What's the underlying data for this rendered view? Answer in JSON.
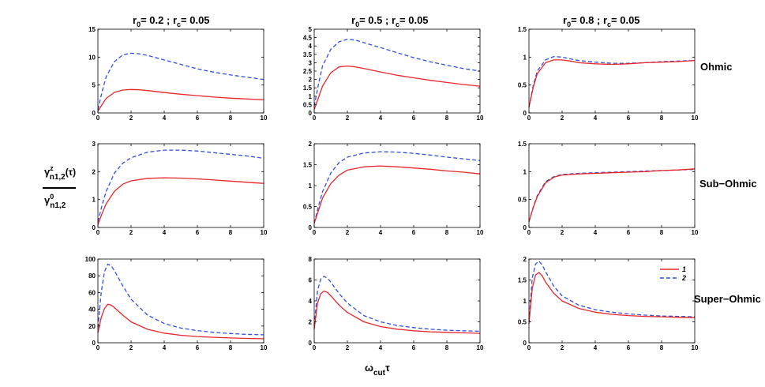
{
  "column_titles": [
    {
      "r0_sym": "r",
      "r0_sub": "0",
      "r0_val": "= 0.2",
      "sep": ";",
      "rc_sym": "r",
      "rc_sub": "c",
      "rc_val": "= 0.05"
    },
    {
      "r0_sym": "r",
      "r0_sub": "0",
      "r0_val": "= 0.5",
      "sep": ";",
      "rc_sym": "r",
      "rc_sub": "c",
      "rc_val": "= 0.05"
    },
    {
      "r0_sym": "r",
      "r0_sub": "0",
      "r0_val": "= 0.8",
      "sep": ";",
      "rc_sym": "r",
      "rc_sub": "c",
      "rc_val": "= 0.05"
    }
  ],
  "row_labels": [
    "Ohmic",
    "Sub−Ohmic",
    "Super−Ohmic"
  ],
  "xlabel": {
    "main": "ω",
    "sub": "cut",
    "tail": "τ"
  },
  "ylabel": {
    "num_main": "γ",
    "num_sup": "z",
    "num_sub": "n1,2",
    "num_tail": "(τ)",
    "den_main": "γ",
    "den_sup": "0",
    "den_sub": "n1,2"
  },
  "legend": {
    "entries": [
      {
        "label": "1",
        "color": "#e8262a",
        "dash": "solid"
      },
      {
        "label": "2",
        "color": "#2f4fe0",
        "dash": "dashed"
      }
    ]
  },
  "colors": {
    "series1": "#e8262a",
    "series2": "#2f4fe0"
  },
  "chart_data": [
    {
      "type": "line",
      "row": "Ohmic",
      "col": "r0=0.2",
      "xlim": [
        0,
        10
      ],
      "ylim": [
        0,
        15
      ],
      "xticks": [
        0,
        2,
        4,
        6,
        8,
        10
      ],
      "yticks": [
        0,
        5,
        10,
        15
      ],
      "x": [
        0,
        0.25,
        0.5,
        1,
        1.5,
        2,
        2.5,
        3,
        4,
        5,
        6,
        7,
        8,
        9,
        10
      ],
      "series": [
        {
          "name": "1",
          "values": [
            0.3,
            1.5,
            2.6,
            3.7,
            4.1,
            4.2,
            4.15,
            4.0,
            3.65,
            3.35,
            3.1,
            2.85,
            2.65,
            2.5,
            2.35
          ]
        },
        {
          "name": "2",
          "values": [
            0.6,
            3.8,
            6.5,
            9.2,
            10.4,
            10.7,
            10.6,
            10.3,
            9.5,
            8.7,
            7.9,
            7.3,
            6.8,
            6.4,
            6.0
          ]
        }
      ]
    },
    {
      "type": "line",
      "row": "Ohmic",
      "col": "r0=0.5",
      "xlim": [
        0,
        10
      ],
      "ylim": [
        0,
        5
      ],
      "xticks": [
        0,
        2,
        4,
        6,
        8,
        10
      ],
      "yticks": [
        0,
        0.5,
        1,
        1.5,
        2,
        2.5,
        3,
        3.5,
        4,
        4.5,
        5
      ],
      "x": [
        0,
        0.25,
        0.5,
        1,
        1.5,
        2,
        2.5,
        3,
        4,
        5,
        6,
        7,
        8,
        9,
        10
      ],
      "series": [
        {
          "name": "1",
          "values": [
            0.2,
            0.9,
            1.6,
            2.4,
            2.75,
            2.8,
            2.75,
            2.65,
            2.45,
            2.25,
            2.1,
            1.95,
            1.82,
            1.7,
            1.6
          ]
        },
        {
          "name": "2",
          "values": [
            0.4,
            1.7,
            2.8,
            3.8,
            4.25,
            4.4,
            4.35,
            4.2,
            3.9,
            3.6,
            3.3,
            3.05,
            2.85,
            2.65,
            2.5
          ]
        }
      ]
    },
    {
      "type": "line",
      "row": "Ohmic",
      "col": "r0=0.8",
      "xlim": [
        0,
        10
      ],
      "ylim": [
        0,
        1.5
      ],
      "xticks": [
        0,
        2,
        4,
        6,
        8,
        10
      ],
      "yticks": [
        0,
        0.5,
        1,
        1.5
      ],
      "x": [
        0,
        0.25,
        0.5,
        1,
        1.5,
        2,
        2.5,
        3,
        4,
        5,
        6,
        7,
        8,
        9,
        10
      ],
      "series": [
        {
          "name": "1",
          "values": [
            0.1,
            0.45,
            0.7,
            0.9,
            0.95,
            0.95,
            0.93,
            0.9,
            0.88,
            0.87,
            0.88,
            0.9,
            0.91,
            0.92,
            0.94
          ]
        },
        {
          "name": "2",
          "values": [
            0.1,
            0.48,
            0.75,
            0.95,
            1.01,
            1.0,
            0.97,
            0.94,
            0.91,
            0.89,
            0.89,
            0.9,
            0.92,
            0.93,
            0.94
          ]
        }
      ]
    },
    {
      "type": "line",
      "row": "Sub−Ohmic",
      "col": "r0=0.2",
      "xlim": [
        0,
        10
      ],
      "ylim": [
        0,
        3
      ],
      "xticks": [
        0,
        2,
        4,
        6,
        8,
        10
      ],
      "yticks": [
        0,
        1,
        2,
        3
      ],
      "x": [
        0,
        0.25,
        0.5,
        1,
        1.5,
        2,
        3,
        4,
        5,
        6,
        7,
        8,
        9,
        10
      ],
      "series": [
        {
          "name": "1",
          "values": [
            0.1,
            0.5,
            0.85,
            1.3,
            1.55,
            1.67,
            1.76,
            1.78,
            1.77,
            1.74,
            1.7,
            1.66,
            1.62,
            1.58
          ]
        },
        {
          "name": "2",
          "values": [
            0.2,
            0.8,
            1.3,
            1.95,
            2.3,
            2.5,
            2.7,
            2.77,
            2.77,
            2.74,
            2.68,
            2.62,
            2.56,
            2.48
          ]
        }
      ]
    },
    {
      "type": "line",
      "row": "Sub−Ohmic",
      "col": "r0=0.5",
      "xlim": [
        0,
        10
      ],
      "ylim": [
        0,
        2
      ],
      "xticks": [
        0,
        2,
        4,
        6,
        8,
        10
      ],
      "yticks": [
        0,
        0.5,
        1,
        1.5,
        2
      ],
      "x": [
        0,
        0.25,
        0.5,
        1,
        1.5,
        2,
        3,
        4,
        5,
        6,
        7,
        8,
        9,
        10
      ],
      "series": [
        {
          "name": "1",
          "values": [
            0.1,
            0.4,
            0.7,
            1.05,
            1.25,
            1.37,
            1.45,
            1.47,
            1.45,
            1.42,
            1.39,
            1.35,
            1.32,
            1.28
          ]
        },
        {
          "name": "2",
          "values": [
            0.1,
            0.5,
            0.85,
            1.3,
            1.55,
            1.68,
            1.78,
            1.81,
            1.8,
            1.77,
            1.73,
            1.68,
            1.64,
            1.6
          ]
        }
      ]
    },
    {
      "type": "line",
      "row": "Sub−Ohmic",
      "col": "r0=0.8",
      "xlim": [
        0,
        10
      ],
      "ylim": [
        0,
        1.5
      ],
      "xticks": [
        0,
        2,
        4,
        6,
        8,
        10
      ],
      "yticks": [
        0,
        0.5,
        1,
        1.5
      ],
      "x": [
        0,
        0.25,
        0.5,
        1,
        1.5,
        2,
        3,
        4,
        5,
        6,
        7,
        8,
        9,
        10
      ],
      "series": [
        {
          "name": "1",
          "values": [
            0.1,
            0.35,
            0.55,
            0.8,
            0.9,
            0.94,
            0.96,
            0.97,
            0.98,
            0.99,
            1.0,
            1.02,
            1.03,
            1.05
          ]
        },
        {
          "name": "2",
          "values": [
            0.1,
            0.36,
            0.57,
            0.82,
            0.91,
            0.95,
            0.97,
            0.98,
            0.99,
            1.0,
            1.01,
            1.02,
            1.03,
            1.04
          ]
        }
      ]
    },
    {
      "type": "line",
      "row": "Super−Ohmic",
      "col": "r0=0.2",
      "xlim": [
        0,
        10
      ],
      "ylim": [
        0,
        100
      ],
      "xticks": [
        0,
        2,
        4,
        6,
        8,
        10
      ],
      "yticks": [
        0,
        20,
        40,
        60,
        80,
        100
      ],
      "x": [
        0,
        0.2,
        0.4,
        0.6,
        0.8,
        1,
        1.5,
        2,
        3,
        4,
        5,
        6,
        7,
        8,
        9,
        10
      ],
      "series": [
        {
          "name": "1",
          "values": [
            12,
            30,
            41,
            46,
            45,
            42,
            33,
            25,
            16,
            11.5,
            9,
            7.5,
            6.5,
            5.8,
            5.2,
            4.8
          ]
        },
        {
          "name": "2",
          "values": [
            18,
            60,
            85,
            94,
            92,
            86,
            68,
            52,
            33,
            23,
            17.5,
            14.5,
            12.5,
            11,
            10,
            9.5
          ]
        }
      ]
    },
    {
      "type": "line",
      "row": "Super−Ohmic",
      "col": "r0=0.5",
      "xlim": [
        0,
        10
      ],
      "ylim": [
        0,
        8
      ],
      "xticks": [
        0,
        2,
        4,
        6,
        8,
        10
      ],
      "yticks": [
        0,
        2,
        4,
        6,
        8
      ],
      "x": [
        0,
        0.2,
        0.4,
        0.6,
        0.8,
        1,
        1.5,
        2,
        3,
        4,
        5,
        6,
        7,
        8,
        9,
        10
      ],
      "series": [
        {
          "name": "1",
          "values": [
            1.3,
            3.8,
            4.7,
            4.95,
            4.8,
            4.5,
            3.6,
            2.9,
            2.0,
            1.55,
            1.3,
            1.15,
            1.05,
            1.0,
            0.95,
            0.9
          ]
        },
        {
          "name": "2",
          "values": [
            1.6,
            5.0,
            6.1,
            6.35,
            6.15,
            5.8,
            4.7,
            3.8,
            2.6,
            2.0,
            1.65,
            1.45,
            1.3,
            1.2,
            1.15,
            1.1
          ]
        }
      ]
    },
    {
      "type": "line",
      "row": "Super−Ohmic",
      "col": "r0=0.8",
      "xlim": [
        0,
        10
      ],
      "ylim": [
        0,
        2
      ],
      "xticks": [
        0,
        2,
        4,
        6,
        8,
        10
      ],
      "yticks": [
        0,
        0.5,
        1,
        1.5,
        2
      ],
      "x": [
        0,
        0.2,
        0.4,
        0.6,
        0.8,
        1,
        1.5,
        2,
        3,
        4,
        5,
        6,
        7,
        8,
        9,
        10
      ],
      "series": [
        {
          "name": "1",
          "values": [
            0.45,
            1.3,
            1.62,
            1.68,
            1.6,
            1.45,
            1.18,
            1.0,
            0.82,
            0.73,
            0.68,
            0.65,
            0.63,
            0.62,
            0.61,
            0.6
          ]
        },
        {
          "name": "2",
          "values": [
            0.5,
            1.55,
            1.88,
            1.95,
            1.86,
            1.7,
            1.35,
            1.12,
            0.9,
            0.79,
            0.73,
            0.69,
            0.66,
            0.64,
            0.63,
            0.62
          ]
        }
      ]
    }
  ]
}
